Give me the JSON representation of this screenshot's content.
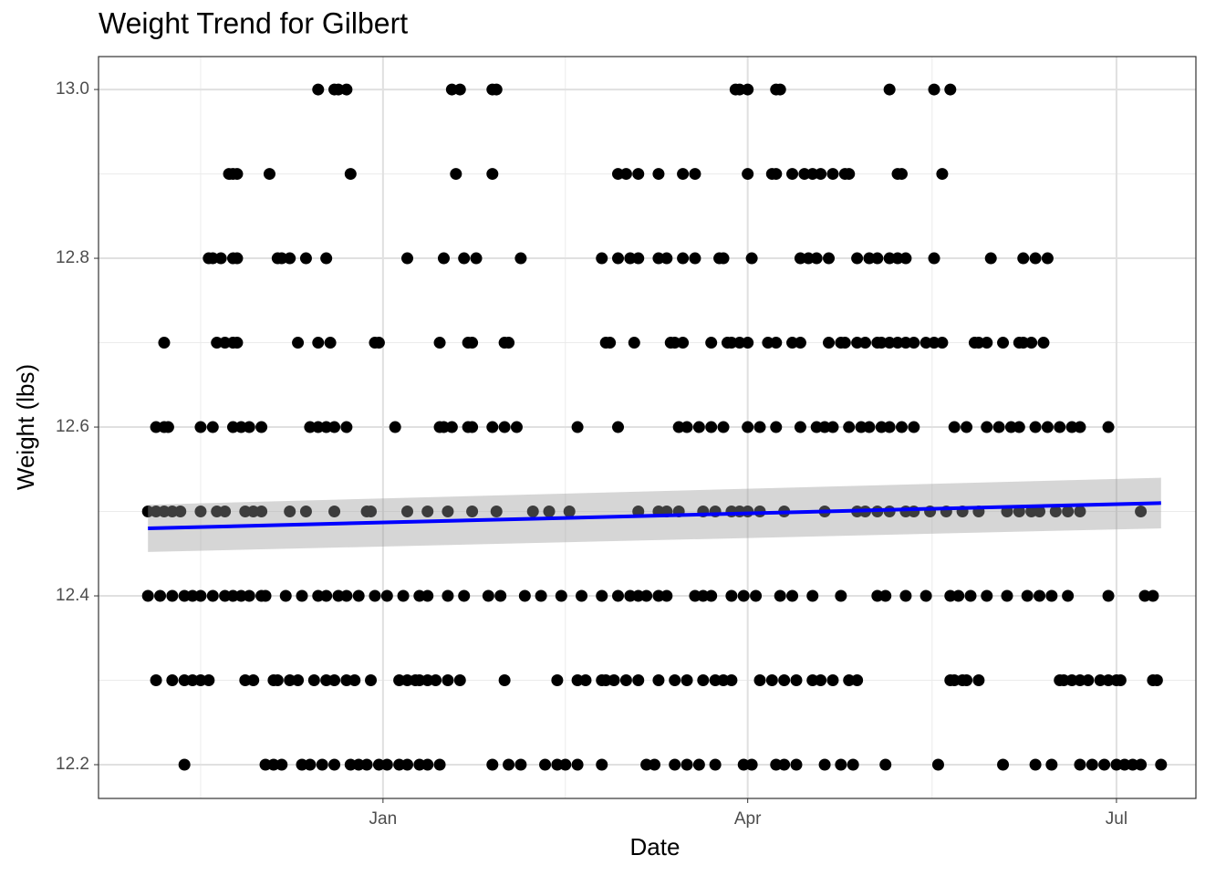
{
  "chart_data": {
    "type": "scatter",
    "title": "Weight Trend for Gilbert",
    "x_label": "Date",
    "y_label": "Weight (lbs)",
    "xlim": [
      -70.2,
      200.6
    ],
    "xticks": [
      {
        "value": 0,
        "label": "Jan"
      },
      {
        "value": 90,
        "label": "Apr"
      },
      {
        "value": 181,
        "label": "Jul"
      }
    ],
    "ylim": [
      12.16,
      13.039
    ],
    "yticks": [
      12.2,
      12.4,
      12.6,
      12.8,
      {
        "value": 13,
        "label": "13.0"
      }
    ],
    "grid": true,
    "color": "#000000",
    "points": [
      [
        -16,
        13.0
      ],
      [
        -12,
        13.0
      ],
      [
        -11,
        13.0
      ],
      [
        -9,
        13.0
      ],
      [
        17,
        13.0
      ],
      [
        19,
        13.0
      ],
      [
        27,
        13.0
      ],
      [
        28,
        13.0
      ],
      [
        87,
        13.0
      ],
      [
        88,
        13.0
      ],
      [
        90,
        13.0
      ],
      [
        97,
        13.0
      ],
      [
        98,
        13.0
      ],
      [
        125,
        13.0
      ],
      [
        136,
        13.0
      ],
      [
        140,
        13.0
      ],
      [
        -38,
        12.9
      ],
      [
        -37,
        12.9
      ],
      [
        -36,
        12.9
      ],
      [
        -28,
        12.9
      ],
      [
        -8,
        12.9
      ],
      [
        18,
        12.9
      ],
      [
        27,
        12.9
      ],
      [
        58,
        12.9
      ],
      [
        60,
        12.9
      ],
      [
        63,
        12.9
      ],
      [
        68,
        12.9
      ],
      [
        74,
        12.9
      ],
      [
        77,
        12.9
      ],
      [
        90,
        12.9
      ],
      [
        96,
        12.9
      ],
      [
        97,
        12.9
      ],
      [
        101,
        12.9
      ],
      [
        104,
        12.9
      ],
      [
        106,
        12.9
      ],
      [
        108,
        12.9
      ],
      [
        111,
        12.9
      ],
      [
        114,
        12.9
      ],
      [
        115,
        12.9
      ],
      [
        127,
        12.9
      ],
      [
        128,
        12.9
      ],
      [
        138,
        12.9
      ],
      [
        -43,
        12.8
      ],
      [
        -42,
        12.8
      ],
      [
        -40,
        12.8
      ],
      [
        -37,
        12.8
      ],
      [
        -36,
        12.8
      ],
      [
        -26,
        12.8
      ],
      [
        -25,
        12.8
      ],
      [
        -23,
        12.8
      ],
      [
        -19,
        12.8
      ],
      [
        -14,
        12.8
      ],
      [
        6,
        12.8
      ],
      [
        15,
        12.8
      ],
      [
        20,
        12.8
      ],
      [
        23,
        12.8
      ],
      [
        34,
        12.8
      ],
      [
        54,
        12.8
      ],
      [
        58,
        12.8
      ],
      [
        61,
        12.8
      ],
      [
        63,
        12.8
      ],
      [
        68,
        12.8
      ],
      [
        70,
        12.8
      ],
      [
        74,
        12.8
      ],
      [
        77,
        12.8
      ],
      [
        83,
        12.8
      ],
      [
        84,
        12.8
      ],
      [
        91,
        12.8
      ],
      [
        103,
        12.8
      ],
      [
        105,
        12.8
      ],
      [
        107,
        12.8
      ],
      [
        110,
        12.8
      ],
      [
        117,
        12.8
      ],
      [
        120,
        12.8
      ],
      [
        122,
        12.8
      ],
      [
        125,
        12.8
      ],
      [
        127,
        12.8
      ],
      [
        129,
        12.8
      ],
      [
        136,
        12.8
      ],
      [
        150,
        12.8
      ],
      [
        158,
        12.8
      ],
      [
        161,
        12.8
      ],
      [
        164,
        12.8
      ],
      [
        -54,
        12.7
      ],
      [
        -41,
        12.7
      ],
      [
        -39,
        12.7
      ],
      [
        -37,
        12.7
      ],
      [
        -36,
        12.7
      ],
      [
        -21,
        12.7
      ],
      [
        -16,
        12.7
      ],
      [
        -13,
        12.7
      ],
      [
        -2,
        12.7
      ],
      [
        -1,
        12.7
      ],
      [
        14,
        12.7
      ],
      [
        21,
        12.7
      ],
      [
        22,
        12.7
      ],
      [
        30,
        12.7
      ],
      [
        31,
        12.7
      ],
      [
        55,
        12.7
      ],
      [
        56,
        12.7
      ],
      [
        62,
        12.7
      ],
      [
        71,
        12.7
      ],
      [
        72,
        12.7
      ],
      [
        74,
        12.7
      ],
      [
        81,
        12.7
      ],
      [
        85,
        12.7
      ],
      [
        86,
        12.7
      ],
      [
        88,
        12.7
      ],
      [
        90,
        12.7
      ],
      [
        95,
        12.7
      ],
      [
        97,
        12.7
      ],
      [
        101,
        12.7
      ],
      [
        103,
        12.7
      ],
      [
        110,
        12.7
      ],
      [
        113,
        12.7
      ],
      [
        114,
        12.7
      ],
      [
        117,
        12.7
      ],
      [
        119,
        12.7
      ],
      [
        122,
        12.7
      ],
      [
        123,
        12.7
      ],
      [
        125,
        12.7
      ],
      [
        127,
        12.7
      ],
      [
        129,
        12.7
      ],
      [
        131,
        12.7
      ],
      [
        134,
        12.7
      ],
      [
        136,
        12.7
      ],
      [
        138,
        12.7
      ],
      [
        146,
        12.7
      ],
      [
        147,
        12.7
      ],
      [
        149,
        12.7
      ],
      [
        153,
        12.7
      ],
      [
        157,
        12.7
      ],
      [
        158,
        12.7
      ],
      [
        160,
        12.7
      ],
      [
        163,
        12.7
      ],
      [
        -56,
        12.6
      ],
      [
        -54,
        12.6
      ],
      [
        -53,
        12.6
      ],
      [
        -45,
        12.6
      ],
      [
        -42,
        12.6
      ],
      [
        -37,
        12.6
      ],
      [
        -35,
        12.6
      ],
      [
        -33,
        12.6
      ],
      [
        -30,
        12.6
      ],
      [
        -18,
        12.6
      ],
      [
        -16,
        12.6
      ],
      [
        -14,
        12.6
      ],
      [
        -12,
        12.6
      ],
      [
        -9,
        12.6
      ],
      [
        3,
        12.6
      ],
      [
        14,
        12.6
      ],
      [
        15,
        12.6
      ],
      [
        17,
        12.6
      ],
      [
        21,
        12.6
      ],
      [
        22,
        12.6
      ],
      [
        27,
        12.6
      ],
      [
        30,
        12.6
      ],
      [
        33,
        12.6
      ],
      [
        48,
        12.6
      ],
      [
        58,
        12.6
      ],
      [
        73,
        12.6
      ],
      [
        75,
        12.6
      ],
      [
        78,
        12.6
      ],
      [
        81,
        12.6
      ],
      [
        84,
        12.6
      ],
      [
        90,
        12.6
      ],
      [
        93,
        12.6
      ],
      [
        97,
        12.6
      ],
      [
        103,
        12.6
      ],
      [
        107,
        12.6
      ],
      [
        109,
        12.6
      ],
      [
        111,
        12.6
      ],
      [
        115,
        12.6
      ],
      [
        118,
        12.6
      ],
      [
        120,
        12.6
      ],
      [
        123,
        12.6
      ],
      [
        125,
        12.6
      ],
      [
        128,
        12.6
      ],
      [
        131,
        12.6
      ],
      [
        141,
        12.6
      ],
      [
        144,
        12.6
      ],
      [
        149,
        12.6
      ],
      [
        152,
        12.6
      ],
      [
        155,
        12.6
      ],
      [
        157,
        12.6
      ],
      [
        161,
        12.6
      ],
      [
        164,
        12.6
      ],
      [
        167,
        12.6
      ],
      [
        170,
        12.6
      ],
      [
        172,
        12.6
      ],
      [
        179,
        12.6
      ],
      [
        -58,
        12.5
      ],
      [
        -56,
        12.5
      ],
      [
        -54,
        12.5
      ],
      [
        -52,
        12.5
      ],
      [
        -50,
        12.5
      ],
      [
        -45,
        12.5
      ],
      [
        -41,
        12.5
      ],
      [
        -39,
        12.5
      ],
      [
        -34,
        12.5
      ],
      [
        -32,
        12.5
      ],
      [
        -30,
        12.5
      ],
      [
        -23,
        12.5
      ],
      [
        -19,
        12.5
      ],
      [
        -12,
        12.5
      ],
      [
        -4,
        12.5
      ],
      [
        -3,
        12.5
      ],
      [
        6,
        12.5
      ],
      [
        11,
        12.5
      ],
      [
        16,
        12.5
      ],
      [
        22,
        12.5
      ],
      [
        28,
        12.5
      ],
      [
        37,
        12.5
      ],
      [
        41,
        12.5
      ],
      [
        46,
        12.5
      ],
      [
        63,
        12.5
      ],
      [
        68,
        12.5
      ],
      [
        70,
        12.5
      ],
      [
        73,
        12.5
      ],
      [
        79,
        12.5
      ],
      [
        82,
        12.5
      ],
      [
        86,
        12.5
      ],
      [
        88,
        12.5
      ],
      [
        90,
        12.5
      ],
      [
        93,
        12.5
      ],
      [
        99,
        12.5
      ],
      [
        109,
        12.5
      ],
      [
        117,
        12.5
      ],
      [
        119,
        12.5
      ],
      [
        122,
        12.5
      ],
      [
        125,
        12.5
      ],
      [
        129,
        12.5
      ],
      [
        131,
        12.5
      ],
      [
        135,
        12.5
      ],
      [
        139,
        12.5
      ],
      [
        143,
        12.5
      ],
      [
        147,
        12.5
      ],
      [
        154,
        12.5
      ],
      [
        157,
        12.5
      ],
      [
        160,
        12.5
      ],
      [
        162,
        12.5
      ],
      [
        166,
        12.5
      ],
      [
        169,
        12.5
      ],
      [
        172,
        12.5
      ],
      [
        187,
        12.5
      ],
      [
        -58,
        12.4
      ],
      [
        -55,
        12.4
      ],
      [
        -52,
        12.4
      ],
      [
        -49,
        12.4
      ],
      [
        -47,
        12.4
      ],
      [
        -45,
        12.4
      ],
      [
        -42,
        12.4
      ],
      [
        -39,
        12.4
      ],
      [
        -37,
        12.4
      ],
      [
        -35,
        12.4
      ],
      [
        -33,
        12.4
      ],
      [
        -30,
        12.4
      ],
      [
        -29,
        12.4
      ],
      [
        -24,
        12.4
      ],
      [
        -20,
        12.4
      ],
      [
        -16,
        12.4
      ],
      [
        -14,
        12.4
      ],
      [
        -11,
        12.4
      ],
      [
        -9,
        12.4
      ],
      [
        -6,
        12.4
      ],
      [
        -2,
        12.4
      ],
      [
        1,
        12.4
      ],
      [
        5,
        12.4
      ],
      [
        9,
        12.4
      ],
      [
        11,
        12.4
      ],
      [
        16,
        12.4
      ],
      [
        20,
        12.4
      ],
      [
        26,
        12.4
      ],
      [
        29,
        12.4
      ],
      [
        35,
        12.4
      ],
      [
        39,
        12.4
      ],
      [
        44,
        12.4
      ],
      [
        49,
        12.4
      ],
      [
        54,
        12.4
      ],
      [
        58,
        12.4
      ],
      [
        61,
        12.4
      ],
      [
        63,
        12.4
      ],
      [
        65,
        12.4
      ],
      [
        68,
        12.4
      ],
      [
        70,
        12.4
      ],
      [
        77,
        12.4
      ],
      [
        79,
        12.4
      ],
      [
        81,
        12.4
      ],
      [
        86,
        12.4
      ],
      [
        89,
        12.4
      ],
      [
        92,
        12.4
      ],
      [
        98,
        12.4
      ],
      [
        101,
        12.4
      ],
      [
        106,
        12.4
      ],
      [
        113,
        12.4
      ],
      [
        122,
        12.4
      ],
      [
        124,
        12.4
      ],
      [
        129,
        12.4
      ],
      [
        134,
        12.4
      ],
      [
        140,
        12.4
      ],
      [
        142,
        12.4
      ],
      [
        145,
        12.4
      ],
      [
        149,
        12.4
      ],
      [
        154,
        12.4
      ],
      [
        159,
        12.4
      ],
      [
        162,
        12.4
      ],
      [
        165,
        12.4
      ],
      [
        169,
        12.4
      ],
      [
        179,
        12.4
      ],
      [
        188,
        12.4
      ],
      [
        190,
        12.4
      ],
      [
        -56,
        12.3
      ],
      [
        -52,
        12.3
      ],
      [
        -49,
        12.3
      ],
      [
        -47,
        12.3
      ],
      [
        -45,
        12.3
      ],
      [
        -43,
        12.3
      ],
      [
        -34,
        12.3
      ],
      [
        -32,
        12.3
      ],
      [
        -27,
        12.3
      ],
      [
        -26,
        12.3
      ],
      [
        -23,
        12.3
      ],
      [
        -21,
        12.3
      ],
      [
        -17,
        12.3
      ],
      [
        -14,
        12.3
      ],
      [
        -12,
        12.3
      ],
      [
        -9,
        12.3
      ],
      [
        -7,
        12.3
      ],
      [
        -3,
        12.3
      ],
      [
        4,
        12.3
      ],
      [
        6,
        12.3
      ],
      [
        8,
        12.3
      ],
      [
        9,
        12.3
      ],
      [
        11,
        12.3
      ],
      [
        13,
        12.3
      ],
      [
        16,
        12.3
      ],
      [
        19,
        12.3
      ],
      [
        30,
        12.3
      ],
      [
        43,
        12.3
      ],
      [
        48,
        12.3
      ],
      [
        50,
        12.3
      ],
      [
        54,
        12.3
      ],
      [
        55,
        12.3
      ],
      [
        57,
        12.3
      ],
      [
        60,
        12.3
      ],
      [
        63,
        12.3
      ],
      [
        68,
        12.3
      ],
      [
        72,
        12.3
      ],
      [
        75,
        12.3
      ],
      [
        79,
        12.3
      ],
      [
        82,
        12.3
      ],
      [
        84,
        12.3
      ],
      [
        86,
        12.3
      ],
      [
        93,
        12.3
      ],
      [
        96,
        12.3
      ],
      [
        99,
        12.3
      ],
      [
        102,
        12.3
      ],
      [
        106,
        12.3
      ],
      [
        108,
        12.3
      ],
      [
        111,
        12.3
      ],
      [
        115,
        12.3
      ],
      [
        117,
        12.3
      ],
      [
        140,
        12.3
      ],
      [
        141,
        12.3
      ],
      [
        143,
        12.3
      ],
      [
        144,
        12.3
      ],
      [
        147,
        12.3
      ],
      [
        167,
        12.3
      ],
      [
        168,
        12.3
      ],
      [
        170,
        12.3
      ],
      [
        172,
        12.3
      ],
      [
        174,
        12.3
      ],
      [
        177,
        12.3
      ],
      [
        179,
        12.3
      ],
      [
        181,
        12.3
      ],
      [
        182,
        12.3
      ],
      [
        190,
        12.3
      ],
      [
        191,
        12.3
      ],
      [
        -49,
        12.2
      ],
      [
        -29,
        12.2
      ],
      [
        -27,
        12.2
      ],
      [
        -25,
        12.2
      ],
      [
        -20,
        12.2
      ],
      [
        -18,
        12.2
      ],
      [
        -15,
        12.2
      ],
      [
        -12,
        12.2
      ],
      [
        -8,
        12.2
      ],
      [
        -6,
        12.2
      ],
      [
        -4,
        12.2
      ],
      [
        -1,
        12.2
      ],
      [
        1,
        12.2
      ],
      [
        4,
        12.2
      ],
      [
        6,
        12.2
      ],
      [
        9,
        12.2
      ],
      [
        11,
        12.2
      ],
      [
        14,
        12.2
      ],
      [
        27,
        12.2
      ],
      [
        31,
        12.2
      ],
      [
        34,
        12.2
      ],
      [
        40,
        12.2
      ],
      [
        43,
        12.2
      ],
      [
        45,
        12.2
      ],
      [
        48,
        12.2
      ],
      [
        54,
        12.2
      ],
      [
        65,
        12.2
      ],
      [
        67,
        12.2
      ],
      [
        72,
        12.2
      ],
      [
        75,
        12.2
      ],
      [
        78,
        12.2
      ],
      [
        82,
        12.2
      ],
      [
        89,
        12.2
      ],
      [
        91,
        12.2
      ],
      [
        97,
        12.2
      ],
      [
        99,
        12.2
      ],
      [
        102,
        12.2
      ],
      [
        109,
        12.2
      ],
      [
        113,
        12.2
      ],
      [
        116,
        12.2
      ],
      [
        124,
        12.2
      ],
      [
        137,
        12.2
      ],
      [
        153,
        12.2
      ],
      [
        161,
        12.2
      ],
      [
        165,
        12.2
      ],
      [
        172,
        12.2
      ],
      [
        175,
        12.2
      ],
      [
        178,
        12.2
      ],
      [
        181,
        12.2
      ],
      [
        183,
        12.2
      ],
      [
        185,
        12.2
      ],
      [
        187,
        12.2
      ],
      [
        192,
        12.2
      ]
    ],
    "trend": {
      "color": "#0000ff",
      "x": [
        -58,
        192
      ],
      "values": [
        12.48,
        12.51
      ],
      "lower": [
        12.452,
        12.48
      ],
      "upper": [
        12.508,
        12.54
      ]
    }
  }
}
